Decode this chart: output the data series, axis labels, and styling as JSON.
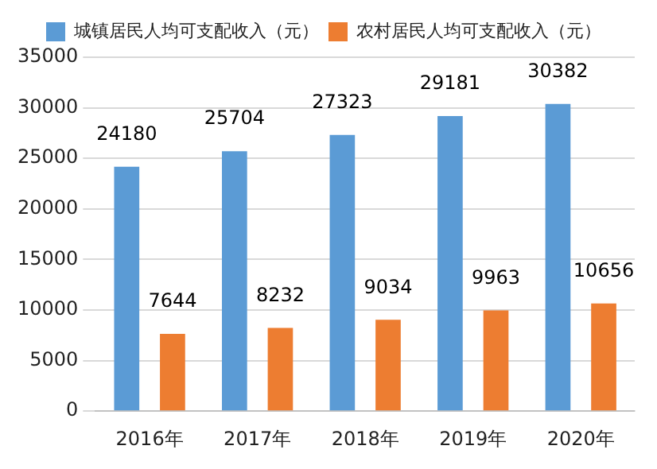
{
  "chart_data": {
    "type": "bar",
    "categories": [
      "2016年",
      "2017年",
      "2018年",
      "2019年",
      "2020年"
    ],
    "series": [
      {
        "name": "城镇居民人均可支配收入（元）",
        "color": "#5b9bd5",
        "values": [
          24180,
          25704,
          27323,
          29181,
          30382
        ]
      },
      {
        "name": "农村居民人均可支配收入（元）",
        "color": "#ed7d31",
        "values": [
          7644,
          8232,
          9034,
          9963,
          10656
        ]
      }
    ],
    "ylim": [
      0,
      35000
    ],
    "yticks": [
      0,
      5000,
      10000,
      15000,
      20000,
      25000,
      30000,
      35000
    ],
    "grid": "y",
    "legend": "top",
    "data_labels": true
  }
}
